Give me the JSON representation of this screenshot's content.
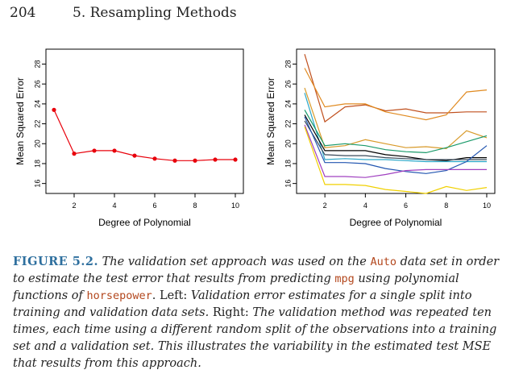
{
  "header": {
    "page_number": "204",
    "chapter_title": "5.  Resampling Methods"
  },
  "chart_data": [
    {
      "type": "line",
      "xlabel": "Degree of Polynomial",
      "ylabel": "Mean Squared Error",
      "xlim": [
        0.6,
        10.4
      ],
      "ylim": [
        15,
        29.5
      ],
      "xticks": [
        2,
        4,
        6,
        8,
        10
      ],
      "yticks": [
        16,
        18,
        20,
        22,
        24,
        26,
        28
      ],
      "grid": false,
      "series": [
        {
          "color": "#e8000b",
          "markers": true,
          "x": [
            1,
            2,
            3,
            4,
            5,
            6,
            7,
            8,
            9,
            10
          ],
          "y": [
            23.4,
            19.0,
            19.3,
            19.3,
            18.8,
            18.5,
            18.3,
            18.3,
            18.4,
            18.4
          ]
        }
      ]
    },
    {
      "type": "line",
      "xlabel": "Degree of Polynomial",
      "ylabel": "Mean Squared Error",
      "xlim": [
        0.6,
        10.4
      ],
      "ylim": [
        15,
        29.5
      ],
      "xticks": [
        2,
        4,
        6,
        8,
        10
      ],
      "yticks": [
        16,
        18,
        20,
        22,
        24,
        26,
        28
      ],
      "grid": false,
      "series": [
        {
          "color": "#c0501e",
          "x": [
            1,
            2,
            3,
            4,
            5,
            6,
            7,
            8,
            9,
            10
          ],
          "y": [
            29.0,
            22.2,
            23.7,
            23.9,
            23.3,
            23.5,
            23.1,
            23.1,
            23.2,
            23.2
          ]
        },
        {
          "color": "#e08a20",
          "x": [
            1,
            2,
            3,
            4,
            5,
            6,
            7,
            8,
            9,
            10
          ],
          "y": [
            27.6,
            23.7,
            24.0,
            24.0,
            23.2,
            22.8,
            22.4,
            22.9,
            25.2,
            25.4
          ]
        },
        {
          "color": "#d89a2a",
          "x": [
            1,
            2,
            3,
            4,
            5,
            6,
            7,
            8,
            9,
            10
          ],
          "y": [
            25.6,
            19.6,
            19.8,
            20.4,
            20.0,
            19.6,
            19.7,
            19.5,
            21.3,
            20.6
          ]
        },
        {
          "color": "#2aa7c8",
          "x": [
            1,
            2,
            3,
            4,
            5,
            6,
            7,
            8,
            9,
            10
          ],
          "y": [
            25.1,
            18.4,
            18.5,
            18.4,
            18.4,
            18.3,
            18.2,
            18.2,
            18.2,
            18.2
          ]
        },
        {
          "color": "#1a9a6a",
          "x": [
            1,
            2,
            3,
            4,
            5,
            6,
            7,
            8,
            9,
            10
          ],
          "y": [
            23.4,
            19.8,
            20.0,
            19.8,
            19.4,
            19.2,
            19.1,
            19.6,
            20.2,
            20.8
          ]
        },
        {
          "color": "#000000",
          "x": [
            1,
            2,
            3,
            4,
            5,
            6,
            7,
            8,
            9,
            10
          ],
          "y": [
            22.9,
            19.3,
            19.3,
            19.3,
            18.9,
            18.7,
            18.4,
            18.3,
            18.6,
            18.6
          ]
        },
        {
          "color": "#3a4a5a",
          "x": [
            1,
            2,
            3,
            4,
            5,
            6,
            7,
            8,
            9,
            10
          ],
          "y": [
            22.3,
            18.9,
            18.8,
            18.8,
            18.6,
            18.5,
            18.4,
            18.4,
            18.4,
            18.4
          ]
        },
        {
          "color": "#2255b0",
          "x": [
            1,
            2,
            3,
            4,
            5,
            6,
            7,
            8,
            9,
            10
          ],
          "y": [
            22.7,
            18.1,
            18.1,
            18.0,
            17.5,
            17.2,
            17.0,
            17.3,
            18.2,
            19.8
          ]
        },
        {
          "color": "#a040c0",
          "x": [
            1,
            2,
            3,
            4,
            5,
            6,
            7,
            8,
            9,
            10
          ],
          "y": [
            21.9,
            16.7,
            16.7,
            16.6,
            16.9,
            17.3,
            17.4,
            17.4,
            17.4,
            17.4
          ]
        },
        {
          "color": "#f0d000",
          "x": [
            1,
            2,
            3,
            4,
            5,
            6,
            7,
            8,
            9,
            10
          ],
          "y": [
            21.7,
            15.9,
            15.9,
            15.8,
            15.4,
            15.2,
            15.0,
            15.7,
            15.3,
            15.6
          ]
        }
      ]
    }
  ],
  "caption": {
    "fig_label": "FIGURE 5.2.",
    "t1": " The validation set approach was used on the ",
    "c1": "Auto",
    "t2": " data set in order to estimate the test error that results from predicting ",
    "c2": "mpg",
    "t3": " using polynomial functions of ",
    "c3": "horsepower",
    "t4": ". ",
    "left_word": "Left:",
    "t5": " Validation error estimates for a single split into training and validation data sets. ",
    "right_word": "Right:",
    "t6": " The validation method was repeated ten times, each time using a different random split of the observations into a training set and a validation set. This illustrates the variability in the estimated test MSE that results from this approach."
  }
}
